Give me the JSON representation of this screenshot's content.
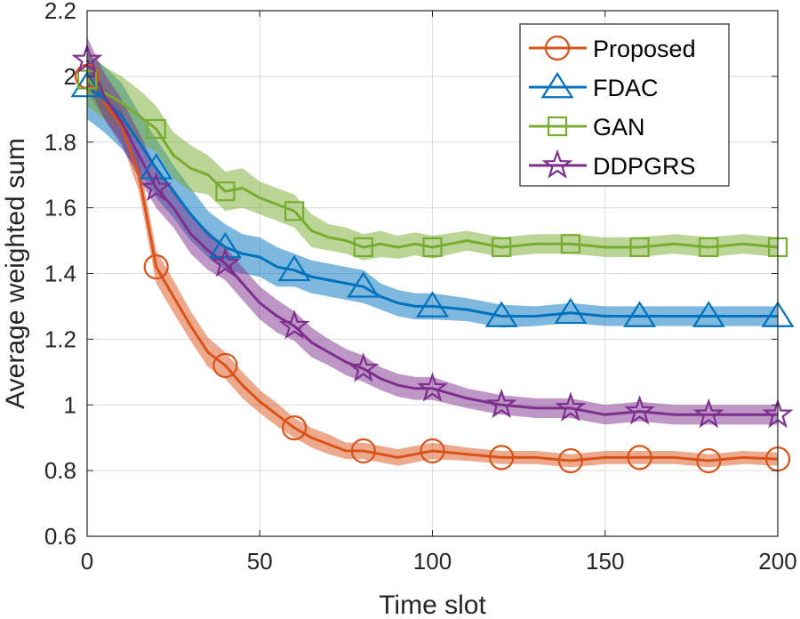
{
  "chart_data": {
    "type": "line",
    "xlabel": "Time slot",
    "ylabel": "Average weighted sum",
    "xlim": [
      0,
      200
    ],
    "ylim": [
      0.6,
      2.2
    ],
    "x_ticks": [
      0,
      50,
      100,
      150,
      200
    ],
    "x_tick_labels": [
      "0",
      "50",
      "100",
      "150",
      "200"
    ],
    "y_ticks": [
      0.6,
      0.8,
      1.0,
      1.2,
      1.4,
      1.6,
      1.8,
      2.0,
      2.2
    ],
    "y_tick_labels": [
      "0.6",
      "0.8",
      "1",
      "1.2",
      "1.4",
      "1.6",
      "1.8",
      "2",
      "2.2"
    ],
    "grid": true,
    "legend_position": "top-right",
    "series": [
      {
        "name": "Proposed",
        "color": "#D95319",
        "marker": "circle",
        "marker_x": [
          0,
          20,
          40,
          60,
          80,
          100,
          120,
          140,
          160,
          180,
          200
        ],
        "x": [
          0,
          5,
          10,
          15,
          20,
          25,
          30,
          35,
          40,
          45,
          50,
          55,
          60,
          65,
          70,
          75,
          80,
          85,
          90,
          95,
          100,
          110,
          120,
          130,
          140,
          150,
          160,
          170,
          180,
          190,
          200
        ],
        "y": [
          2.0,
          1.92,
          1.85,
          1.7,
          1.42,
          1.33,
          1.24,
          1.16,
          1.12,
          1.06,
          1.01,
          0.97,
          0.93,
          0.9,
          0.88,
          0.86,
          0.86,
          0.85,
          0.84,
          0.85,
          0.86,
          0.85,
          0.84,
          0.84,
          0.83,
          0.84,
          0.84,
          0.84,
          0.83,
          0.84,
          0.835
        ],
        "band": [
          0.05,
          0.05,
          0.05,
          0.05,
          0.05,
          0.05,
          0.045,
          0.045,
          0.04,
          0.04,
          0.035,
          0.035,
          0.03,
          0.03,
          0.03,
          0.025,
          0.025,
          0.025,
          0.025,
          0.025,
          0.025,
          0.02,
          0.02,
          0.02,
          0.02,
          0.02,
          0.02,
          0.02,
          0.02,
          0.02,
          0.02
        ]
      },
      {
        "name": "FDAC",
        "color": "#0072BD",
        "marker": "triangle",
        "marker_x": [
          0,
          20,
          40,
          60,
          80,
          100,
          120,
          140,
          160,
          180,
          200
        ],
        "x": [
          0,
          5,
          10,
          15,
          20,
          25,
          30,
          35,
          40,
          45,
          50,
          55,
          60,
          65,
          70,
          75,
          80,
          85,
          90,
          95,
          100,
          110,
          120,
          130,
          140,
          150,
          160,
          170,
          180,
          190,
          200
        ],
        "y": [
          1.97,
          1.93,
          1.88,
          1.8,
          1.72,
          1.65,
          1.58,
          1.52,
          1.48,
          1.46,
          1.45,
          1.42,
          1.41,
          1.39,
          1.38,
          1.37,
          1.36,
          1.33,
          1.31,
          1.3,
          1.3,
          1.29,
          1.27,
          1.27,
          1.28,
          1.27,
          1.27,
          1.27,
          1.27,
          1.27,
          1.27
        ],
        "band": [
          0.1,
          0.1,
          0.1,
          0.09,
          0.09,
          0.08,
          0.08,
          0.07,
          0.07,
          0.06,
          0.06,
          0.06,
          0.05,
          0.05,
          0.05,
          0.05,
          0.05,
          0.04,
          0.04,
          0.04,
          0.04,
          0.035,
          0.035,
          0.03,
          0.03,
          0.03,
          0.03,
          0.03,
          0.03,
          0.03,
          0.03
        ]
      },
      {
        "name": "GAN",
        "color": "#77AC30",
        "marker": "square",
        "marker_x": [
          0,
          20,
          40,
          60,
          80,
          100,
          120,
          140,
          160,
          180,
          200
        ],
        "x": [
          0,
          5,
          10,
          15,
          20,
          25,
          30,
          35,
          40,
          45,
          50,
          55,
          60,
          65,
          70,
          75,
          80,
          85,
          90,
          95,
          100,
          110,
          120,
          130,
          140,
          150,
          160,
          170,
          180,
          190,
          200
        ],
        "y": [
          1.99,
          1.95,
          1.92,
          1.88,
          1.84,
          1.76,
          1.72,
          1.7,
          1.65,
          1.66,
          1.63,
          1.61,
          1.59,
          1.53,
          1.51,
          1.5,
          1.48,
          1.49,
          1.48,
          1.49,
          1.48,
          1.5,
          1.48,
          1.49,
          1.49,
          1.48,
          1.48,
          1.49,
          1.48,
          1.49,
          1.48
        ],
        "band": [
          0.08,
          0.08,
          0.08,
          0.08,
          0.07,
          0.07,
          0.07,
          0.06,
          0.06,
          0.06,
          0.05,
          0.05,
          0.05,
          0.05,
          0.04,
          0.04,
          0.04,
          0.04,
          0.035,
          0.035,
          0.035,
          0.03,
          0.03,
          0.03,
          0.03,
          0.03,
          0.03,
          0.03,
          0.03,
          0.03,
          0.03
        ]
      },
      {
        "name": "DDPGRS",
        "color": "#7E2F8E",
        "marker": "pentagram",
        "marker_x": [
          0,
          20,
          40,
          60,
          80,
          100,
          120,
          140,
          160,
          180,
          200
        ],
        "x": [
          0,
          5,
          10,
          15,
          20,
          25,
          30,
          35,
          40,
          45,
          50,
          55,
          60,
          65,
          70,
          75,
          80,
          85,
          90,
          95,
          100,
          110,
          120,
          130,
          140,
          150,
          160,
          170,
          180,
          190,
          200
        ],
        "y": [
          2.05,
          1.94,
          1.86,
          1.76,
          1.66,
          1.6,
          1.52,
          1.47,
          1.43,
          1.37,
          1.31,
          1.27,
          1.24,
          1.19,
          1.16,
          1.13,
          1.11,
          1.08,
          1.06,
          1.05,
          1.05,
          1.02,
          1.0,
          0.99,
          0.99,
          0.97,
          0.98,
          0.97,
          0.97,
          0.97,
          0.97
        ],
        "band": [
          0.07,
          0.07,
          0.07,
          0.07,
          0.06,
          0.06,
          0.06,
          0.06,
          0.05,
          0.05,
          0.05,
          0.05,
          0.045,
          0.045,
          0.04,
          0.04,
          0.04,
          0.035,
          0.035,
          0.035,
          0.035,
          0.03,
          0.03,
          0.03,
          0.03,
          0.03,
          0.03,
          0.03,
          0.03,
          0.03,
          0.03
        ]
      }
    ]
  }
}
